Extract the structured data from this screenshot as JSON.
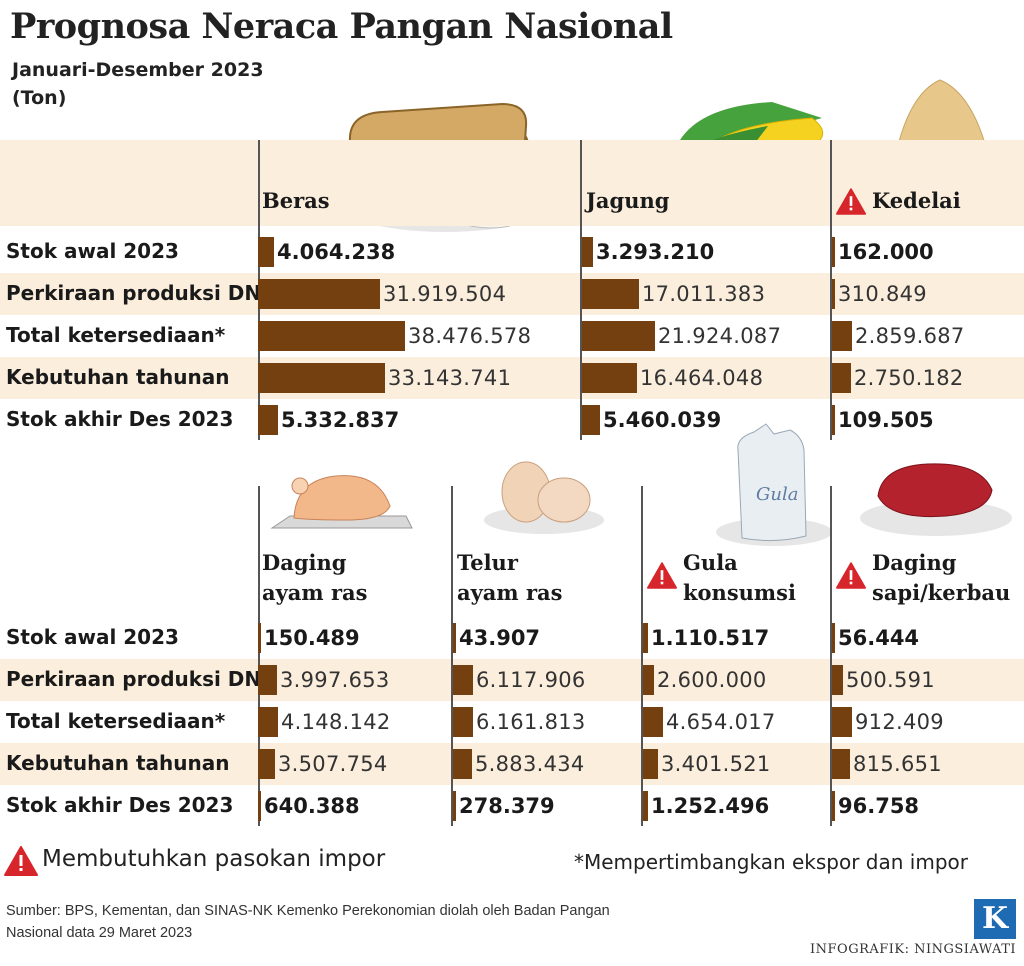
{
  "title": "Prognosa Neraca Pangan Nasional",
  "subtitle": "Januari-Desember 2023",
  "unit": "(Ton)",
  "row_labels": [
    "Stok awal 2023",
    "Perkiraan produksi DN",
    "Total ketersediaan*",
    "Kebutuhan tahunan",
    "Stok akhir Des 2023"
  ],
  "legend": {
    "import_needed": "Membutuhkan pasokan impor",
    "note": "*Mempertimbangkan ekspor dan impor"
  },
  "source": "Sumber: BPS, Kementan, dan SINAS-NK Kemenko Perekonomian diolah oleh Badan Pangan Nasional data 29 Maret 2023",
  "credit": "INFOGRAFIK: NINGSIAWATI",
  "logo": "K",
  "illustration_text": {
    "sugar_bag": "Gula"
  },
  "colors": {
    "bar": "#74400f",
    "band": "#fbeedd",
    "warning": "#d7262b",
    "logo": "#1f6bb3"
  },
  "chart_data": [
    {
      "type": "bar",
      "categories": [
        "Stok awal 2023",
        "Perkiraan produksi DN",
        "Total ketersediaan*",
        "Kebutuhan tahunan",
        "Stok akhir Des 2023"
      ],
      "series": [
        {
          "name": "Beras",
          "import_needed": false,
          "labels": [
            "4.064.238",
            "31.919.504",
            "38.476.578",
            "33.143.741",
            "5.332.837"
          ],
          "values": [
            4064238,
            31919504,
            38476578,
            33143741,
            5332837
          ]
        },
        {
          "name": "Jagung",
          "import_needed": false,
          "labels": [
            "3.293.210",
            "17.011.383",
            "21.924.087",
            "16.464.048",
            "5.460.039"
          ],
          "values": [
            3293210,
            17011383,
            21924087,
            16464048,
            5460039
          ]
        },
        {
          "name": "Kedelai",
          "import_needed": true,
          "labels": [
            "162.000",
            "310.849",
            "2.859.687",
            "2.750.182",
            "109.505"
          ],
          "values": [
            162000,
            310849,
            2859687,
            2750182,
            109505
          ]
        }
      ]
    },
    {
      "type": "bar",
      "categories": [
        "Stok awal 2023",
        "Perkiraan produksi DN",
        "Total ketersediaan*",
        "Kebutuhan tahunan",
        "Stok akhir Des 2023"
      ],
      "series": [
        {
          "name": "Daging ayam ras",
          "import_needed": false,
          "labels": [
            "150.489",
            "3.997.653",
            "4.148.142",
            "3.507.754",
            "640.388"
          ],
          "values": [
            150489,
            3997653,
            4148142,
            3507754,
            640388
          ]
        },
        {
          "name": "Telur ayam ras",
          "import_needed": false,
          "labels": [
            "43.907",
            "6.117.906",
            "6.161.813",
            "5.883.434",
            "278.379"
          ],
          "values": [
            43907,
            6117906,
            6161813,
            5883434,
            278379
          ]
        },
        {
          "name": "Gula konsumsi",
          "import_needed": true,
          "labels": [
            "1.110.517",
            "2.600.000",
            "4.654.017",
            "3.401.521",
            "1.252.496"
          ],
          "values": [
            1110517,
            2600000,
            4654017,
            3401521,
            1252496
          ]
        },
        {
          "name": "Daging sapi/kerbau",
          "import_needed": true,
          "labels": [
            "56.444",
            "500.591",
            "912.409",
            "815.651",
            "96.758"
          ],
          "values": [
            56444,
            500591,
            912409,
            815651,
            96758
          ]
        }
      ]
    }
  ]
}
